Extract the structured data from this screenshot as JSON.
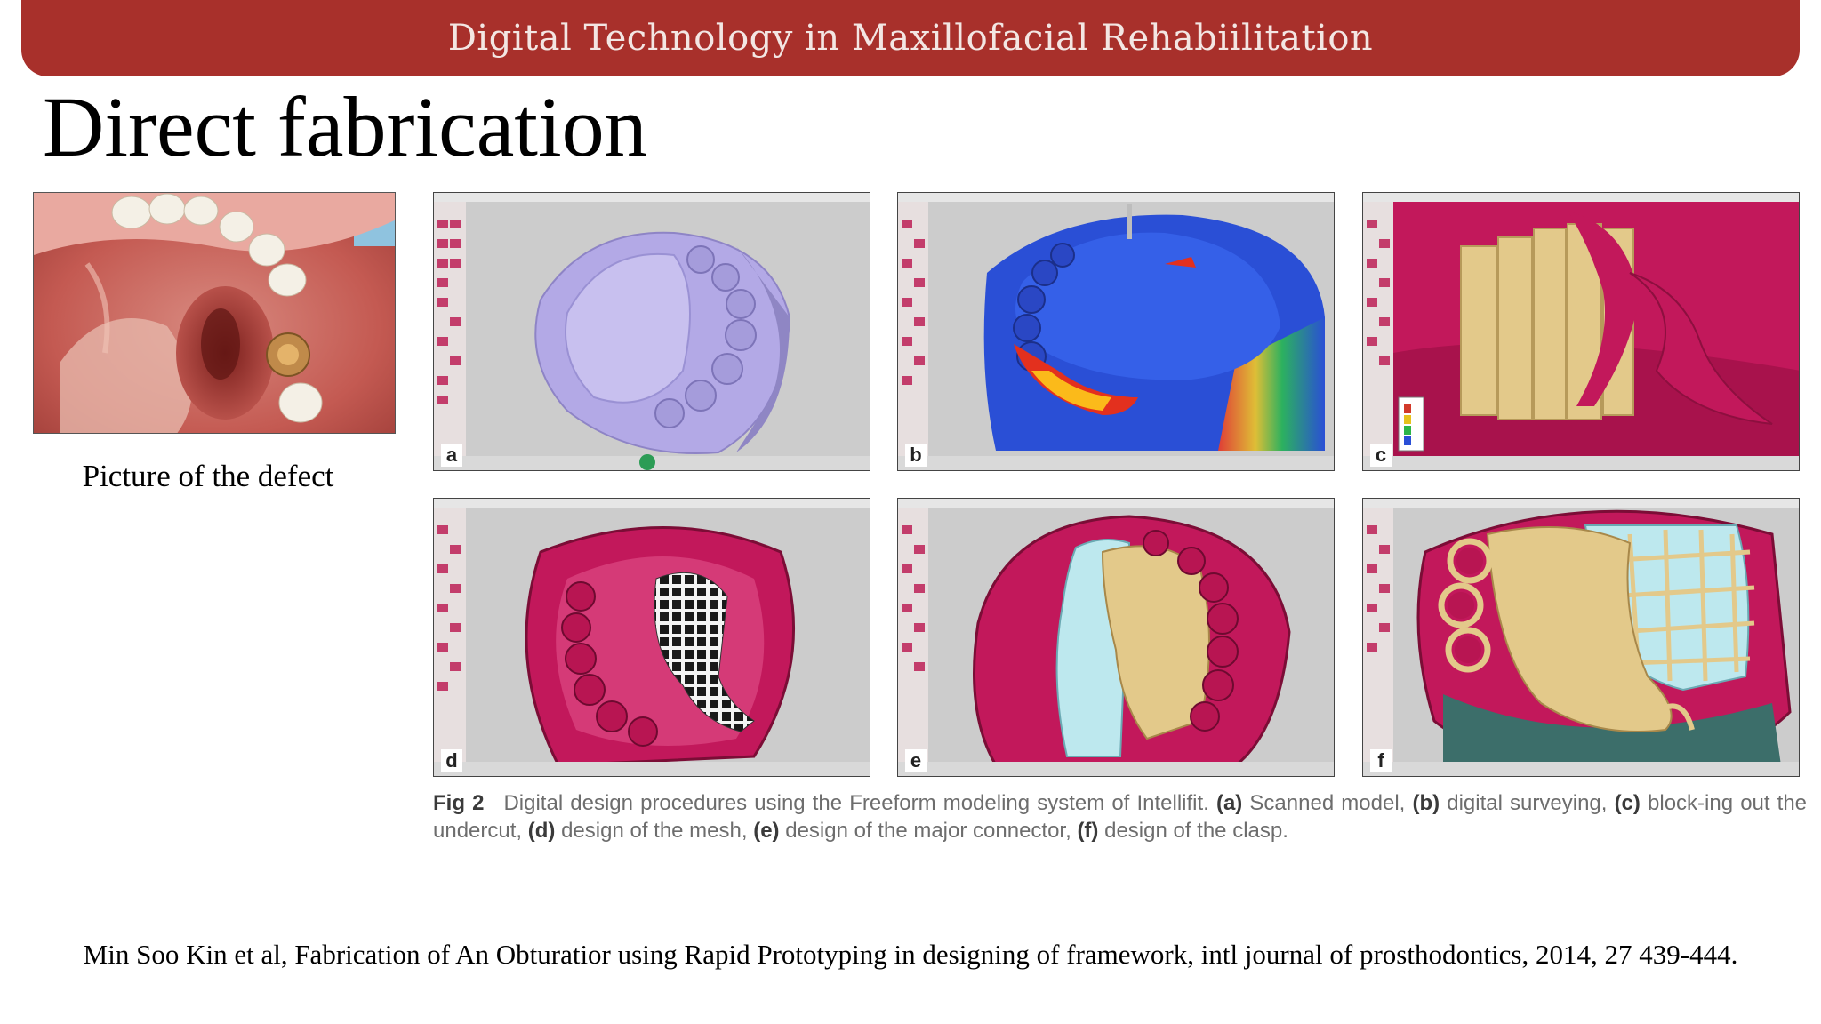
{
  "banner": {
    "title": "Digital Technology in Maxillofacial Rehabiilitation",
    "color": "#a8302b"
  },
  "slide": {
    "title": "Direct fabrication"
  },
  "defect": {
    "caption": "Picture of the defect"
  },
  "figure": {
    "panels": [
      {
        "letter": "a"
      },
      {
        "letter": "b"
      },
      {
        "letter": "c"
      },
      {
        "letter": "d"
      },
      {
        "letter": "e"
      },
      {
        "letter": "f"
      }
    ],
    "caption": {
      "label": "Fig 2",
      "intro": "Digital design procedures using the Freeform modeling system of Intellifit.",
      "a_tag": "(a)",
      "a_text": "Scanned model,",
      "b_tag": "(b)",
      "b_text": "digital surveying,",
      "c_tag": "(c)",
      "c_text": "block-ing out the undercut,",
      "d_tag": "(d)",
      "d_text": "design of the mesh,",
      "e_tag": "(e)",
      "e_text": "design of the major connector,",
      "f_tag": "(f)",
      "f_text": "design of the clasp."
    }
  },
  "citation": {
    "text": "Min Soo Kin et al, Fabrication of An Obturatior using Rapid Prototyping in designing of framework, intl journal of prosthodontics, 2014, 27 439-444."
  },
  "colors": {
    "tissue_pink": "#c2185b",
    "framework_gold": "#e3c98a",
    "model_lavender": "#b3a9e6",
    "survey_blue": "#2a4fd6",
    "relief_cyan": "#bde8ee"
  }
}
